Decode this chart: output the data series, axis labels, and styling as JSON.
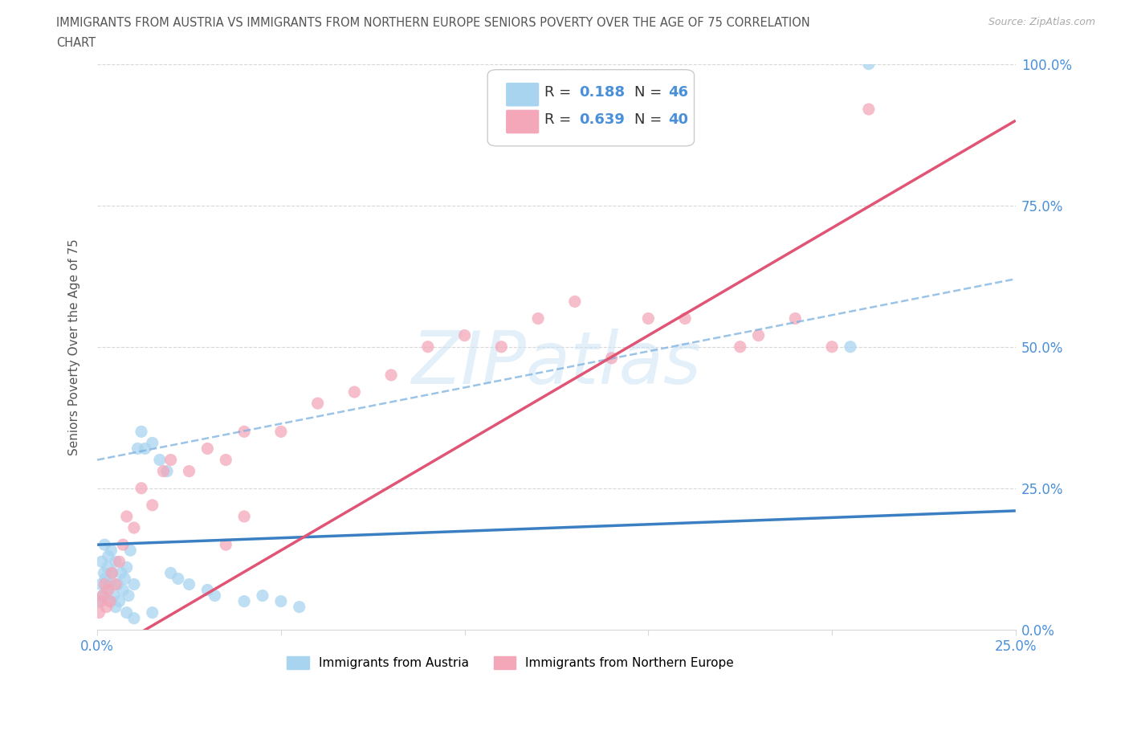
{
  "title_line1": "IMMIGRANTS FROM AUSTRIA VS IMMIGRANTS FROM NORTHERN EUROPE SENIORS POVERTY OVER THE AGE OF 75 CORRELATION",
  "title_line2": "CHART",
  "source": "Source: ZipAtlas.com",
  "ylabel": "Seniors Poverty Over the Age of 75",
  "watermark": "ZIPatlas",
  "R_austria": "0.188",
  "N_austria": "46",
  "R_northern": "0.639",
  "N_northern": "40",
  "color_austria_scatter": "#a8d4f0",
  "color_northern_scatter": "#f4a7b9",
  "color_austria_line": "#3a7fc1",
  "color_austria_dash": "#7ab0e0",
  "color_northern_line": "#e05575",
  "color_text_title": "#555555",
  "color_text_blue": "#4a90d9",
  "color_grid": "#d8d8d8",
  "background_color": "#ffffff",
  "xmax": 25.0,
  "ymax": 100.0,
  "ytick_vals": [
    0,
    25,
    50,
    75,
    100
  ],
  "ytick_labels": [
    "0.0%",
    "25.0%",
    "50.0%",
    "75.0%",
    "100.0%"
  ],
  "xtick_vals": [
    0,
    5,
    10,
    15,
    20,
    25
  ],
  "austria_x": [
    0.05,
    0.1,
    0.12,
    0.15,
    0.18,
    0.2,
    0.22,
    0.25,
    0.28,
    0.3,
    0.32,
    0.35,
    0.38,
    0.4,
    0.45,
    0.5,
    0.55,
    0.6,
    0.65,
    0.7,
    0.75,
    0.8,
    0.85,
    0.9,
    1.0,
    1.1,
    1.2,
    1.3,
    1.5,
    1.7,
    1.9,
    2.0,
    2.2,
    2.5,
    3.0,
    3.2,
    4.0,
    4.5,
    5.0,
    5.5,
    0.5,
    0.8,
    1.0,
    1.5,
    20.5,
    21.0
  ],
  "austria_y": [
    5.0,
    8.0,
    12.0,
    6.0,
    10.0,
    15.0,
    9.0,
    7.0,
    11.0,
    13.0,
    8.0,
    5.0,
    14.0,
    10.0,
    6.0,
    12.0,
    8.0,
    5.0,
    10.0,
    7.0,
    9.0,
    11.0,
    6.0,
    14.0,
    8.0,
    32.0,
    35.0,
    32.0,
    33.0,
    30.0,
    28.0,
    10.0,
    9.0,
    8.0,
    7.0,
    6.0,
    5.0,
    6.0,
    5.0,
    4.0,
    4.0,
    3.0,
    2.0,
    3.0,
    50.0,
    100.0
  ],
  "northern_x": [
    0.05,
    0.1,
    0.15,
    0.2,
    0.25,
    0.3,
    0.35,
    0.4,
    0.5,
    0.6,
    0.7,
    0.8,
    1.0,
    1.2,
    1.5,
    1.8,
    2.0,
    2.5,
    3.0,
    3.5,
    4.0,
    5.0,
    6.0,
    7.0,
    8.0,
    9.0,
    10.0,
    11.0,
    12.0,
    13.0,
    14.0,
    15.0,
    16.0,
    17.5,
    18.0,
    19.0,
    20.0,
    21.0,
    3.5,
    4.0
  ],
  "northern_y": [
    3.0,
    5.0,
    6.0,
    8.0,
    4.0,
    7.0,
    5.0,
    10.0,
    8.0,
    12.0,
    15.0,
    20.0,
    18.0,
    25.0,
    22.0,
    28.0,
    30.0,
    28.0,
    32.0,
    30.0,
    35.0,
    35.0,
    40.0,
    42.0,
    45.0,
    50.0,
    52.0,
    50.0,
    55.0,
    58.0,
    48.0,
    55.0,
    55.0,
    50.0,
    52.0,
    55.0,
    50.0,
    92.0,
    15.0,
    20.0
  ]
}
